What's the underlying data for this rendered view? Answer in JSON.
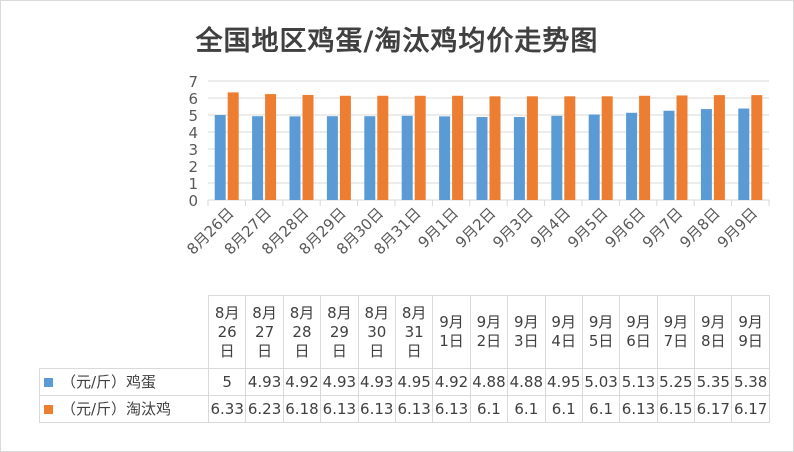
{
  "chart_data": {
    "type": "bar",
    "title": "全国地区鸡蛋/淘汰鸡均价走势图",
    "categories": [
      "8月26日",
      "8月27日",
      "8月28日",
      "8月29日",
      "8月30日",
      "8月31日",
      "9月1日",
      "9月2日",
      "9月3日",
      "9月4日",
      "9月5日",
      "9月6日",
      "9月7日",
      "9月8日",
      "9月9日"
    ],
    "series": [
      {
        "name": "（元/斤）鸡蛋",
        "color": "#5b9bd5",
        "values": [
          5,
          4.93,
          4.92,
          4.93,
          4.93,
          4.95,
          4.92,
          4.88,
          4.88,
          4.95,
          5.03,
          5.13,
          5.25,
          5.35,
          5.38
        ]
      },
      {
        "name": "（元/斤）淘汰鸡",
        "color": "#ed7d31",
        "values": [
          6.33,
          6.23,
          6.18,
          6.13,
          6.13,
          6.13,
          6.13,
          6.1,
          6.1,
          6.1,
          6.1,
          6.13,
          6.15,
          6.17,
          6.17
        ]
      }
    ],
    "value_labels": [
      [
        "5",
        "4.93",
        "4.92",
        "4.93",
        "4.93",
        "4.95",
        "4.92",
        "4.88",
        "4.88",
        "4.95",
        "5.03",
        "5.13",
        "5.25",
        "5.35",
        "5.38"
      ],
      [
        "6.33",
        "6.23",
        "6.18",
        "6.13",
        "6.13",
        "6.13",
        "6.13",
        "6.1",
        "6.1",
        "6.1",
        "6.1",
        "6.13",
        "6.15",
        "6.17",
        "6.17"
      ]
    ],
    "ylim": [
      0,
      7
    ],
    "yticks": [
      "0",
      "1",
      "2",
      "3",
      "4",
      "5",
      "6",
      "7"
    ],
    "grid": true,
    "legend": "data-table"
  }
}
